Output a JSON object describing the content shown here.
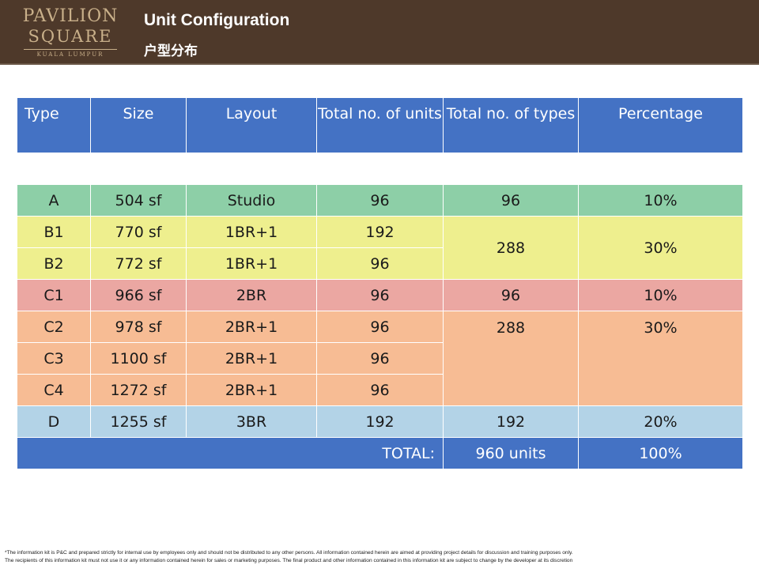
{
  "logo": {
    "line1": "PAVILION",
    "line2": "SQUARE",
    "line3": "KUALA LUMPUR"
  },
  "header": {
    "title_en": "Unit Configuration",
    "title_zh": "户型分布"
  },
  "colors": {
    "header_bg": "#4e392a",
    "table_header": "#4472c4",
    "green": "#8dcfa7",
    "yellow": "#eeef8e",
    "red": "#eba7a2",
    "orange": "#f7bc94",
    "blue": "#b3d3e7"
  },
  "table": {
    "columns": [
      "Type",
      "Size",
      "Layout",
      "Total no. of units",
      "Total no. of types",
      "Percentage"
    ],
    "rows": [
      {
        "type": "A",
        "size": "504 sf",
        "layout": "Studio",
        "units": "96"
      },
      {
        "type": "B1",
        "size": "770 sf",
        "layout": "1BR+1",
        "units": "192"
      },
      {
        "type": "B2",
        "size": "772 sf",
        "layout": "1BR+1",
        "units": "96"
      },
      {
        "type": "C1",
        "size": "966 sf",
        "layout": "2BR",
        "units": "96"
      },
      {
        "type": "C2",
        "size": "978 sf",
        "layout": "2BR+1",
        "units": "96"
      },
      {
        "type": "C3",
        "size": "1100 sf",
        "layout": "2BR+1",
        "units": "96"
      },
      {
        "type": "C4",
        "size": "1272 sf",
        "layout": "2BR+1",
        "units": "96"
      },
      {
        "type": "D",
        "size": "1255 sf",
        "layout": "3BR",
        "units": "192"
      }
    ],
    "groups": [
      {
        "types": "96",
        "percentage": "10%"
      },
      {
        "types": "288",
        "percentage": "30%"
      },
      {
        "types": "96",
        "percentage": "10%"
      },
      {
        "types": "288",
        "percentage": "30%"
      },
      {
        "types": "192",
        "percentage": "20%"
      }
    ],
    "total": {
      "label": "TOTAL:",
      "units": "960 units",
      "percentage": "100%"
    }
  },
  "footnote": {
    "line1": "*The information kit is P&C and prepared strictly for internal use by employees only and should not be distributed to any other persons. All information contained herein are aimed at providing project details for discussion and training purposes only.",
    "line2": "The recipients of this information kit must not use it or any information contained herein for sales or marketing purposes. The final product and other information contained in this information kit are subject to change by the developer at its discretion"
  }
}
